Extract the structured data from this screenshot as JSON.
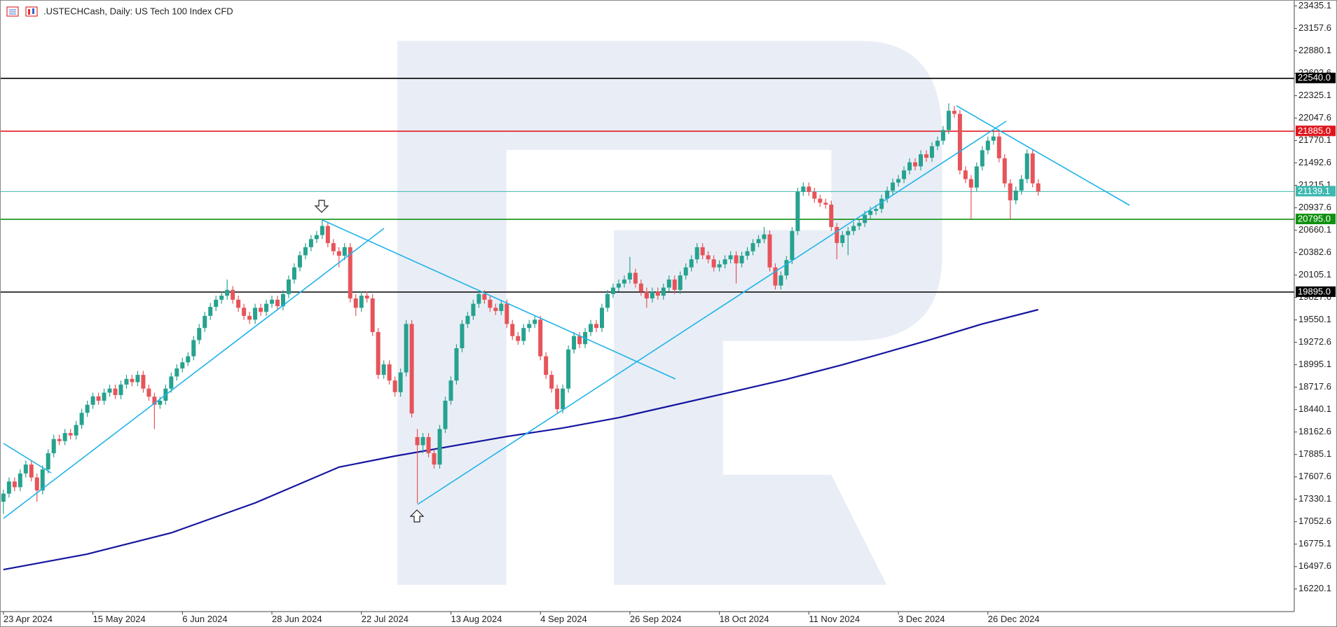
{
  "chart_data": {
    "type": "candlestick",
    "title": ".USTECHCash, Daily:  US Tech 100 Index CFD",
    "up_color": "#26a28f",
    "down_color": "#e6545a",
    "ylim": [
      15945,
      23488
    ],
    "yticks": [
      23435.1,
      23157.6,
      22880.1,
      22602.6,
      22325.1,
      22047.6,
      21770.1,
      21492.6,
      21215.1,
      20937.6,
      20660.1,
      20382.6,
      20105.1,
      19827.6,
      19550.1,
      19272.6,
      18995.1,
      18717.6,
      18440.1,
      18162.6,
      17885.1,
      17607.6,
      17330.1,
      17052.6,
      16775.1,
      16497.6,
      16220.1
    ],
    "xticks": [
      {
        "value": 0,
        "label": "23 Apr 2024"
      },
      {
        "value": 16,
        "label": "15 May 2024"
      },
      {
        "value": 32,
        "label": "6 Jun 2024"
      },
      {
        "value": 48,
        "label": "28 Jun 2024"
      },
      {
        "value": 64,
        "label": "22 Jul 2024"
      },
      {
        "value": 80,
        "label": "13 Aug 2024"
      },
      {
        "value": 96,
        "label": "4 Sep 2024"
      },
      {
        "value": 112,
        "label": "26 Sep 2024"
      },
      {
        "value": 128,
        "label": "18 Oct 2024"
      },
      {
        "value": 144,
        "label": "11 Nov 2024"
      },
      {
        "value": 160,
        "label": "3 Dec 2024"
      },
      {
        "value": 176,
        "label": "26 Dec 2024"
      }
    ],
    "levels": [
      {
        "value": 22540,
        "label": "22540.0",
        "color": "#000000"
      },
      {
        "value": 21885,
        "label": "21885.0",
        "color": "#e0161e"
      },
      {
        "value": 21139.1,
        "label": "21139.1",
        "color": "#3fb8b0"
      },
      {
        "value": 20795,
        "label": "20795.0",
        "color": "#109010"
      },
      {
        "value": 19895,
        "label": "19895.0",
        "color": "#000000"
      }
    ],
    "moving_average": {
      "color": "#1515a0",
      "x": [
        0,
        15,
        30,
        45,
        60,
        70,
        90,
        100,
        110,
        120,
        130,
        140,
        150,
        165,
        175,
        185
      ],
      "values": [
        16460,
        16652,
        16915,
        17285,
        17728,
        17865,
        18107,
        18213,
        18340,
        18498,
        18656,
        18815,
        18995,
        19290,
        19500,
        19677
      ]
    },
    "candles": [
      [
        17300,
        17450,
        17150,
        17400
      ],
      [
        17400,
        17600,
        17350,
        17550
      ],
      [
        17550,
        17600,
        17430,
        17480
      ],
      [
        17480,
        17700,
        17430,
        17650
      ],
      [
        17650,
        17810,
        17600,
        17760
      ],
      [
        17760,
        17810,
        17550,
        17600
      ],
      [
        17600,
        17650,
        17300,
        17440
      ],
      [
        17440,
        17750,
        17390,
        17700
      ],
      [
        17700,
        17950,
        17650,
        17900
      ],
      [
        17900,
        18130,
        17850,
        18076
      ],
      [
        18076,
        18130,
        18000,
        18050
      ],
      [
        18050,
        18200,
        18000,
        18150
      ],
      [
        18150,
        18200,
        18070,
        18120
      ],
      [
        18120,
        18300,
        18070,
        18250
      ],
      [
        18250,
        18450,
        18200,
        18400
      ],
      [
        18400,
        18550,
        18350,
        18500
      ],
      [
        18500,
        18650,
        18450,
        18604
      ],
      [
        18604,
        18650,
        18500,
        18550
      ],
      [
        18550,
        18700,
        18500,
        18650
      ],
      [
        18650,
        18750,
        18600,
        18700
      ],
      [
        18700,
        18750,
        18570,
        18620
      ],
      [
        18620,
        18800,
        18570,
        18750
      ],
      [
        18750,
        18870,
        18700,
        18820
      ],
      [
        18820,
        18870,
        18730,
        18780
      ],
      [
        18780,
        18920,
        18730,
        18870
      ],
      [
        18870,
        18920,
        18650,
        18700
      ],
      [
        18700,
        18750,
        18550,
        18600
      ],
      [
        18600,
        18650,
        18200,
        18500
      ],
      [
        18500,
        18600,
        18450,
        18550
      ],
      [
        18550,
        18750,
        18500,
        18700
      ],
      [
        18700,
        18900,
        18650,
        18850
      ],
      [
        18850,
        19000,
        18800,
        18950
      ],
      [
        18950,
        19080,
        18900,
        19025
      ],
      [
        19025,
        19150,
        18980,
        19100
      ],
      [
        19100,
        19350,
        19050,
        19300
      ],
      [
        19300,
        19500,
        19250,
        19450
      ],
      [
        19450,
        19650,
        19400,
        19600
      ],
      [
        19600,
        19760,
        19550,
        19711
      ],
      [
        19711,
        19850,
        19660,
        19800
      ],
      [
        19800,
        19900,
        19750,
        19850
      ],
      [
        19850,
        20050,
        19800,
        19922
      ],
      [
        19922,
        19970,
        19750,
        19800
      ],
      [
        19800,
        19850,
        19650,
        19700
      ],
      [
        19700,
        19750,
        19550,
        19600
      ],
      [
        19600,
        19650,
        19500,
        19553
      ],
      [
        19553,
        19750,
        19500,
        19700
      ],
      [
        19700,
        19750,
        19600,
        19650
      ],
      [
        19650,
        19800,
        19600,
        19750
      ],
      [
        19750,
        19850,
        19700,
        19800
      ],
      [
        19800,
        19850,
        19670,
        19720
      ],
      [
        19720,
        19920,
        19670,
        19870
      ],
      [
        19870,
        20100,
        19820,
        20050
      ],
      [
        20050,
        20250,
        20000,
        20200
      ],
      [
        20200,
        20400,
        20150,
        20350
      ],
      [
        20350,
        20500,
        20300,
        20450
      ],
      [
        20450,
        20600,
        20400,
        20550
      ],
      [
        20550,
        20650,
        20500,
        20600
      ],
      [
        20600,
        20790,
        20550,
        20713
      ],
      [
        20713,
        20760,
        20450,
        20500
      ],
      [
        20500,
        20550,
        20350,
        20400
      ],
      [
        20400,
        20450,
        20200,
        20344
      ],
      [
        20344,
        20500,
        20290,
        20450
      ],
      [
        20450,
        20500,
        19766,
        19816
      ],
      [
        19816,
        19870,
        19600,
        19700
      ],
      [
        19700,
        19900,
        19650,
        19850
      ],
      [
        19850,
        19900,
        19766,
        19816
      ],
      [
        19816,
        19870,
        19350,
        19400
      ],
      [
        19400,
        19450,
        18820,
        18870
      ],
      [
        18870,
        19050,
        18820,
        19000
      ],
      [
        19000,
        19050,
        18750,
        18800
      ],
      [
        18800,
        18850,
        18600,
        18656
      ],
      [
        18656,
        18950,
        18600,
        18900
      ],
      [
        18900,
        19550,
        18850,
        19500
      ],
      [
        19500,
        19550,
        18342,
        18392
      ],
      [
        18100,
        18200,
        17280,
        18000
      ],
      [
        18000,
        18150,
        17900,
        18100
      ],
      [
        18100,
        18150,
        17850,
        17900
      ],
      [
        17900,
        17950,
        17710,
        17760
      ],
      [
        17760,
        18250,
        17710,
        18200
      ],
      [
        18200,
        18600,
        18150,
        18550
      ],
      [
        18550,
        18850,
        18500,
        18800
      ],
      [
        18800,
        19250,
        18750,
        19200
      ],
      [
        19200,
        19550,
        19150,
        19500
      ],
      [
        19500,
        19650,
        19450,
        19600
      ],
      [
        19600,
        19800,
        19550,
        19750
      ],
      [
        19750,
        19920,
        19700,
        19870
      ],
      [
        19870,
        19920,
        19750,
        19800
      ],
      [
        19800,
        19850,
        19650,
        19700
      ],
      [
        19700,
        19750,
        19610,
        19660
      ],
      [
        19660,
        19800,
        19610,
        19750
      ],
      [
        19750,
        19800,
        19450,
        19500
      ],
      [
        19500,
        19550,
        19300,
        19350
      ],
      [
        19350,
        19400,
        19240,
        19290
      ],
      [
        19290,
        19500,
        19240,
        19450
      ],
      [
        19450,
        19550,
        19400,
        19500
      ],
      [
        19500,
        19600,
        19450,
        19553
      ],
      [
        19553,
        19600,
        19050,
        19100
      ],
      [
        19100,
        19150,
        18820,
        18870
      ],
      [
        18870,
        18920,
        18650,
        18700
      ],
      [
        18700,
        18750,
        18395,
        18445
      ],
      [
        18445,
        18750,
        18395,
        18700
      ],
      [
        18700,
        19234,
        18650,
        19184
      ],
      [
        19184,
        19400,
        19134,
        19350
      ],
      [
        19350,
        19400,
        19200,
        19250
      ],
      [
        19250,
        19450,
        19200,
        19400
      ],
      [
        19400,
        19550,
        19350,
        19500
      ],
      [
        19500,
        19550,
        19400,
        19450
      ],
      [
        19450,
        19750,
        19400,
        19700
      ],
      [
        19700,
        19920,
        19650,
        19870
      ],
      [
        19870,
        20000,
        19820,
        19950
      ],
      [
        19950,
        20050,
        19900,
        20000
      ],
      [
        20000,
        20100,
        19950,
        20050
      ],
      [
        20050,
        20330,
        20000,
        20133
      ],
      [
        20133,
        20183,
        19950,
        20000
      ],
      [
        20000,
        20050,
        19850,
        19900
      ],
      [
        19900,
        19950,
        19700,
        19816
      ],
      [
        19816,
        19950,
        19766,
        19900
      ],
      [
        19900,
        19950,
        19800,
        19850
      ],
      [
        19850,
        20000,
        19800,
        19950
      ],
      [
        19950,
        20100,
        19900,
        20050
      ],
      [
        20050,
        20100,
        19872,
        19922
      ],
      [
        19922,
        20150,
        19872,
        20100
      ],
      [
        20100,
        20250,
        20050,
        20200
      ],
      [
        20200,
        20350,
        20150,
        20300
      ],
      [
        20300,
        20500,
        20250,
        20450
      ],
      [
        20450,
        20500,
        20300,
        20350
      ],
      [
        20350,
        20400,
        20250,
        20300
      ],
      [
        20300,
        20350,
        20150,
        20200
      ],
      [
        20200,
        20288,
        20150,
        20238
      ],
      [
        20238,
        20350,
        20188,
        20300
      ],
      [
        20300,
        20400,
        20250,
        20350
      ],
      [
        20350,
        20400,
        20000,
        20250
      ],
      [
        20250,
        20394,
        20200,
        20344
      ],
      [
        20344,
        20450,
        20294,
        20400
      ],
      [
        20400,
        20550,
        20350,
        20500
      ],
      [
        20500,
        20600,
        20450,
        20550
      ],
      [
        20550,
        20700,
        20500,
        20608
      ],
      [
        20608,
        20658,
        20150,
        20200
      ],
      [
        20200,
        20250,
        19925,
        19975
      ],
      [
        19975,
        20150,
        19925,
        20100
      ],
      [
        20100,
        20341,
        20050,
        20291
      ],
      [
        20291,
        20700,
        20241,
        20650
      ],
      [
        20650,
        21185,
        20600,
        21135
      ],
      [
        21135,
        21250,
        21085,
        21200
      ],
      [
        21200,
        21250,
        21085,
        21135
      ],
      [
        21135,
        21185,
        21000,
        21050
      ],
      [
        21050,
        21100,
        20950,
        21000
      ],
      [
        21000,
        21050,
        20927,
        20977
      ],
      [
        20977,
        21027,
        20650,
        20700
      ],
      [
        20700,
        20750,
        20300,
        20502
      ],
      [
        20502,
        20650,
        20452,
        20600
      ],
      [
        20600,
        20700,
        20350,
        20650
      ],
      [
        20650,
        20763,
        20600,
        20713
      ],
      [
        20713,
        20800,
        20663,
        20750
      ],
      [
        20750,
        20900,
        20700,
        20850
      ],
      [
        20850,
        20950,
        20800,
        20900
      ],
      [
        20900,
        20974,
        20850,
        20924
      ],
      [
        20924,
        21100,
        20874,
        21050
      ],
      [
        21050,
        21200,
        21000,
        21150
      ],
      [
        21150,
        21300,
        21100,
        21250
      ],
      [
        21250,
        21343,
        21200,
        21293
      ],
      [
        21293,
        21450,
        21243,
        21400
      ],
      [
        21400,
        21550,
        21350,
        21500
      ],
      [
        21500,
        21550,
        21400,
        21450
      ],
      [
        21450,
        21650,
        21400,
        21600
      ],
      [
        21600,
        21650,
        21507,
        21557
      ],
      [
        21557,
        21750,
        21507,
        21700
      ],
      [
        21700,
        21818,
        21650,
        21768
      ],
      [
        21768,
        21950,
        21718,
        21900
      ],
      [
        21900,
        22230,
        21850,
        22138
      ],
      [
        22138,
        22200,
        22050,
        22100
      ],
      [
        22100,
        22150,
        21350,
        21400
      ],
      [
        21400,
        21450,
        21243,
        21293
      ],
      [
        21293,
        21343,
        20800,
        21188
      ],
      [
        21188,
        21500,
        21138,
        21450
      ],
      [
        21450,
        21700,
        21400,
        21650
      ],
      [
        21650,
        21818,
        21600,
        21768
      ],
      [
        21768,
        21900,
        21718,
        21820
      ],
      [
        21820,
        21870,
        21500,
        21550
      ],
      [
        21550,
        21600,
        21190,
        21240
      ],
      [
        21240,
        21290,
        20800,
        21030
      ],
      [
        21030,
        21200,
        20980,
        21150
      ],
      [
        21150,
        21343,
        21100,
        21293
      ],
      [
        21293,
        21660,
        21243,
        21610
      ],
      [
        21610,
        21660,
        21190,
        21240
      ],
      [
        21240,
        21290,
        21089,
        21139
      ]
    ]
  }
}
